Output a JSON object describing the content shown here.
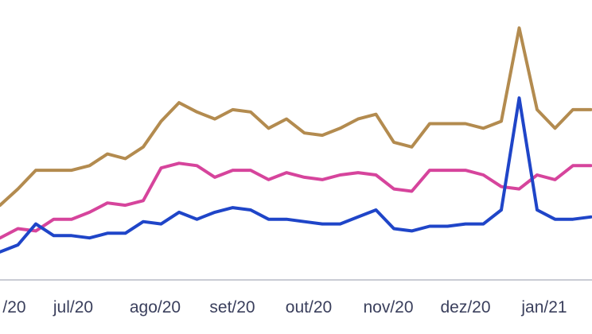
{
  "chart_data": {
    "type": "line",
    "title": "",
    "xlabel": "",
    "ylabel": "",
    "x_tick_labels": [
      "/20",
      "jul/20",
      "ago/20",
      "set/20",
      "out/20",
      "nov/20",
      "dez/20",
      "jan/21"
    ],
    "ylim": [
      0,
      12
    ],
    "grid": false,
    "series": [
      {
        "color": "#b38b4f",
        "values": [
          3.2,
          3.9,
          4.7,
          4.7,
          4.7,
          4.9,
          5.4,
          5.2,
          5.7,
          6.8,
          7.6,
          7.2,
          6.9,
          7.3,
          7.2,
          6.5,
          6.9,
          6.3,
          6.2,
          6.5,
          6.9,
          7.1,
          5.9,
          5.7,
          6.7,
          6.7,
          6.7,
          6.5,
          6.8,
          10.8,
          7.3,
          6.5,
          7.3,
          7.3
        ]
      },
      {
        "color": "#d6449c",
        "values": [
          1.8,
          2.2,
          2.1,
          2.6,
          2.6,
          2.9,
          3.3,
          3.2,
          3.4,
          4.8,
          5.0,
          4.9,
          4.4,
          4.7,
          4.7,
          4.3,
          4.6,
          4.4,
          4.3,
          4.5,
          4.6,
          4.5,
          3.9,
          3.8,
          4.7,
          4.7,
          4.7,
          4.5,
          4.0,
          3.9,
          4.5,
          4.3,
          4.9,
          4.9
        ]
      },
      {
        "color": "#1f45c8",
        "values": [
          1.2,
          1.5,
          2.4,
          1.9,
          1.9,
          1.8,
          2.0,
          2.0,
          2.5,
          2.4,
          2.9,
          2.6,
          2.9,
          3.1,
          3.0,
          2.6,
          2.6,
          2.5,
          2.4,
          2.4,
          2.7,
          3.0,
          2.2,
          2.1,
          2.3,
          2.3,
          2.4,
          2.4,
          3.0,
          7.8,
          3.0,
          2.6,
          2.6,
          2.7
        ]
      }
    ]
  }
}
